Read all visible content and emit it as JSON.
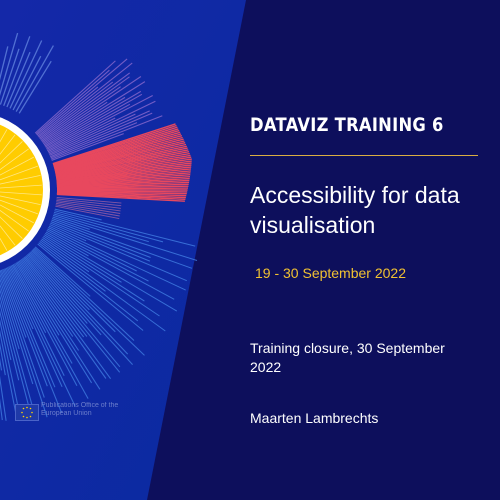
{
  "slide": {
    "series_title": "DATAVIZ TRAINING 6",
    "headline": "Accessibility for data visualisation",
    "dates": "19 - 30 September 2022",
    "closure": "Training closure, 30 September 2022",
    "author": "Maarten Lambrechts"
  },
  "logo": {
    "org_name": "Publications Office of the European Union"
  },
  "colors": {
    "background": "#0d0f5c",
    "accent_rule": "#d9ad42",
    "dates_text": "#f1c232",
    "sunburst_red": "#e8485e",
    "sunburst_yellow": "#ffcc00",
    "sunburst_blue": "#3f7ae0",
    "sunburst_purple": "#7d62c9"
  }
}
